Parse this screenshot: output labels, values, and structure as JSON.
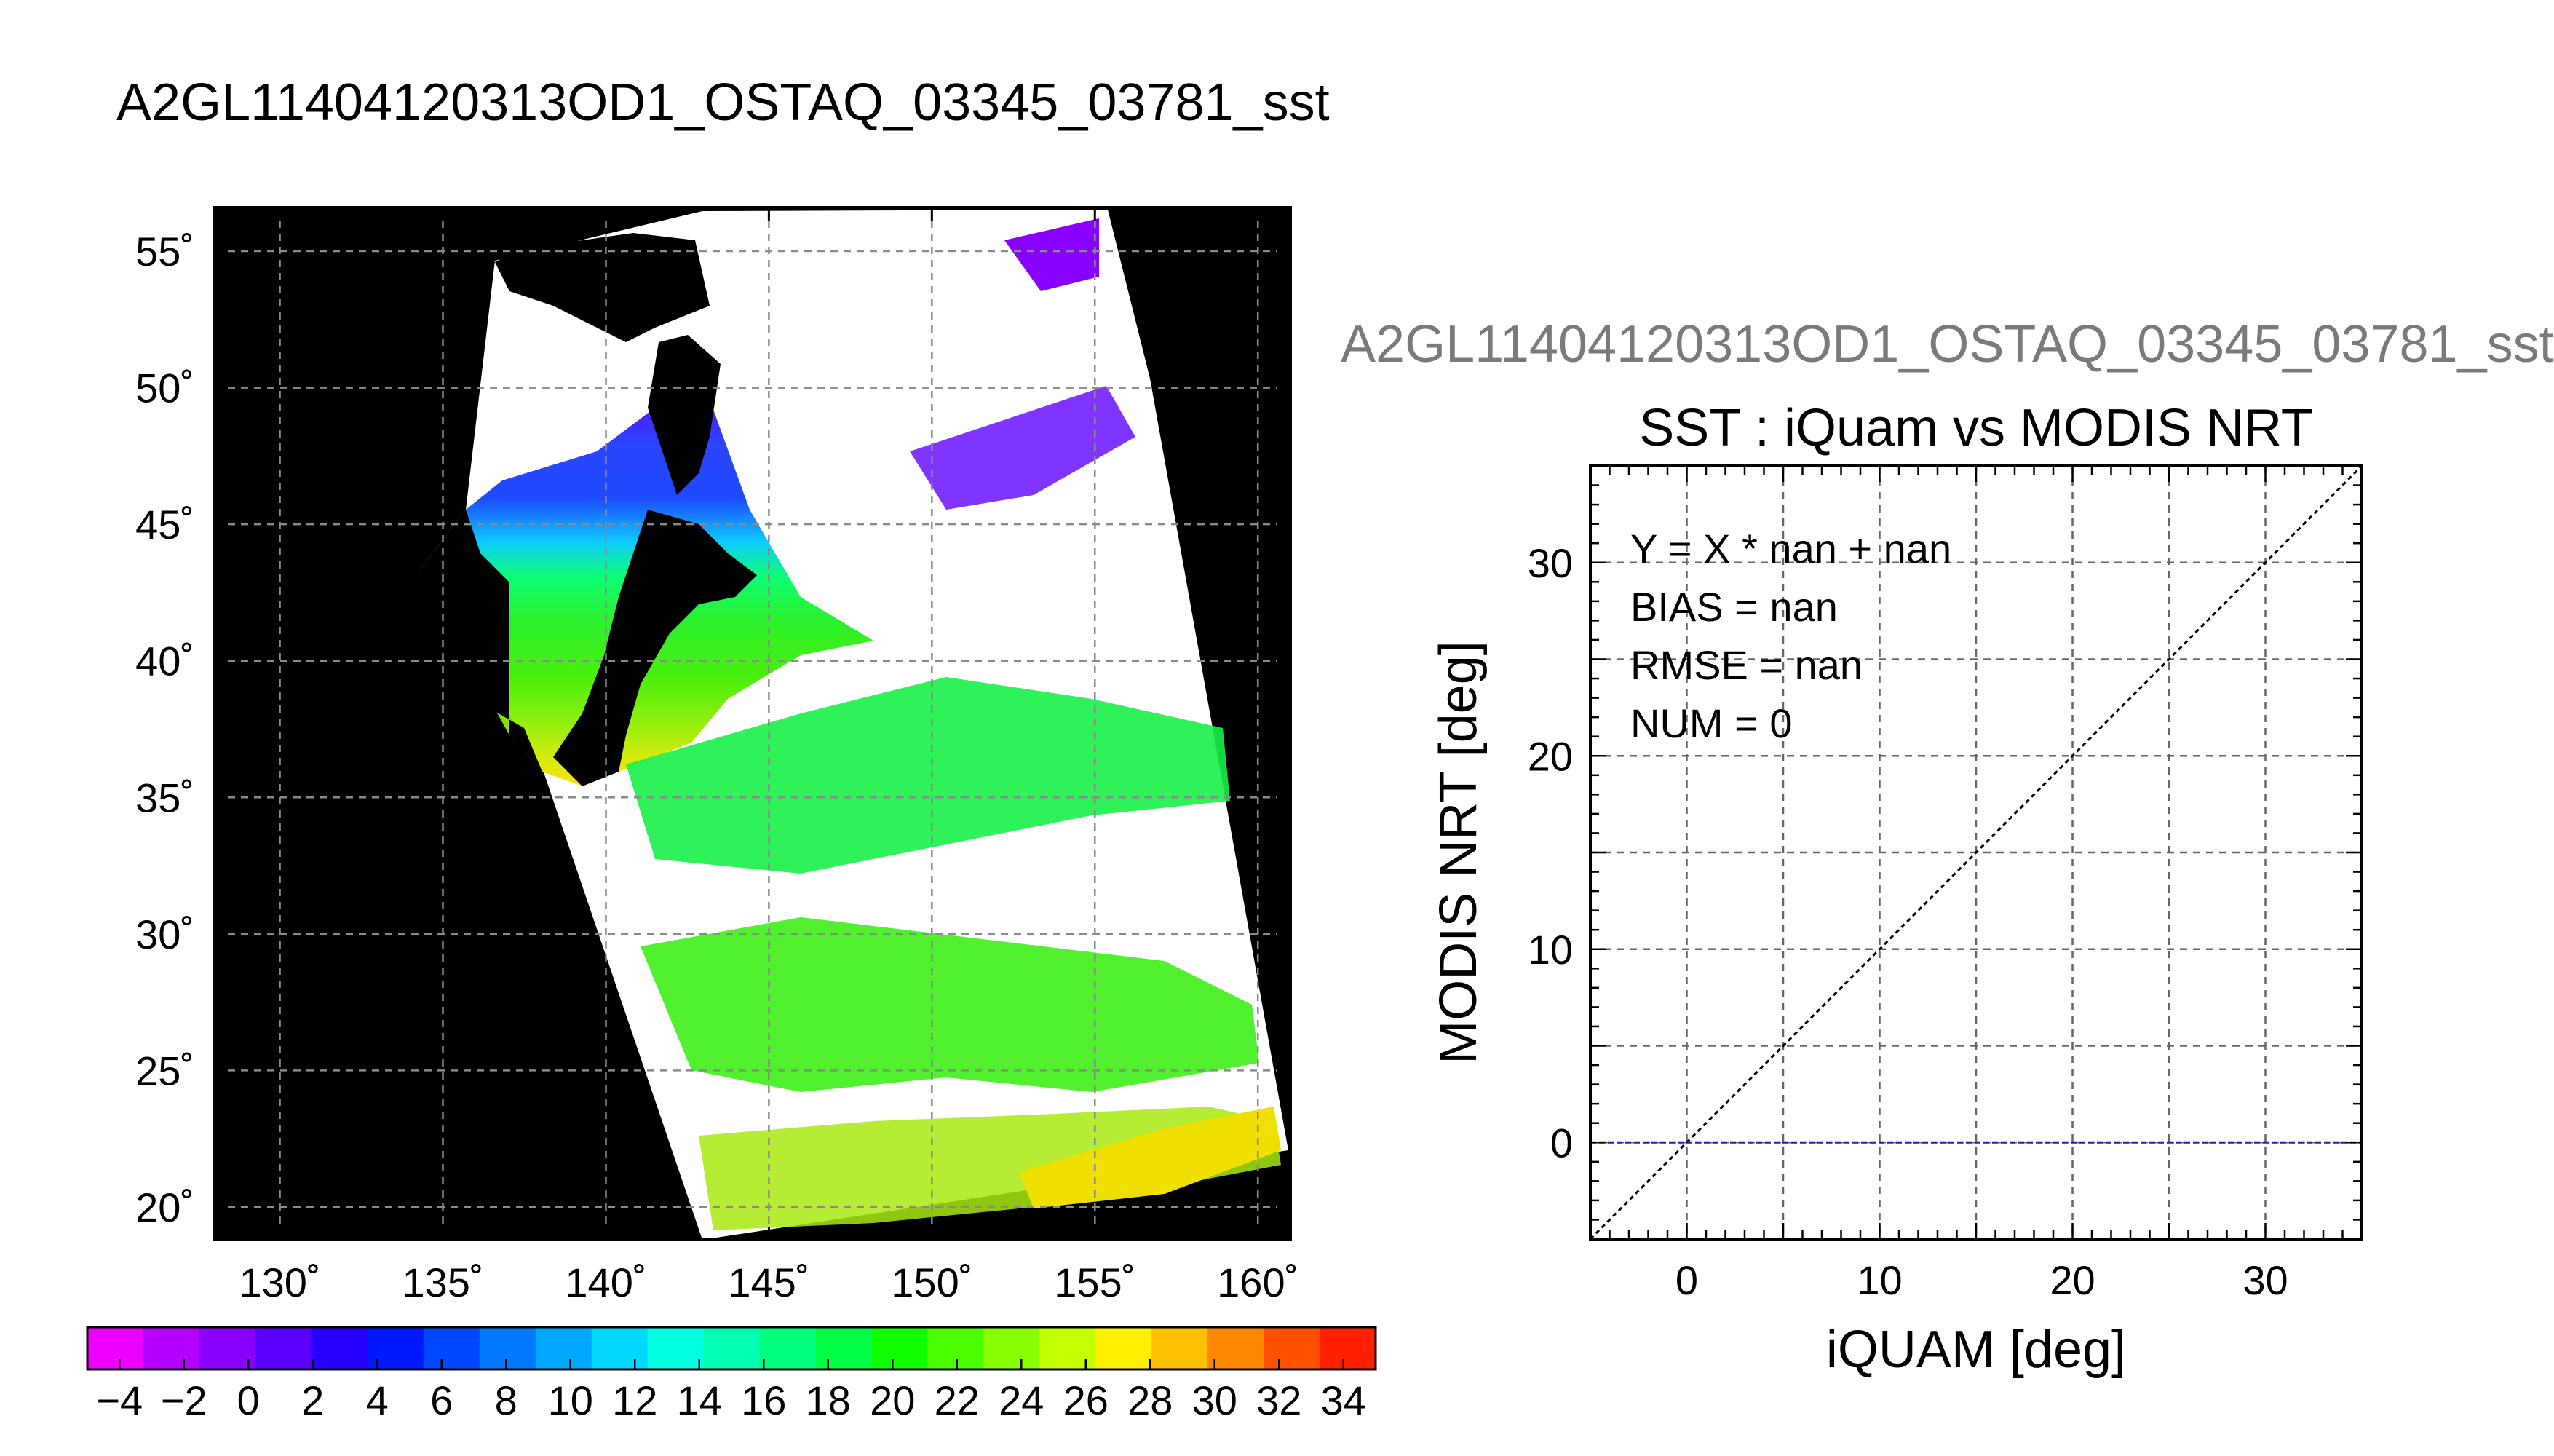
{
  "header": {
    "title": "A2GL11404120313OD1_OSTAQ_03345_03781_sst"
  },
  "map": {
    "lon_ticks": [
      130,
      135,
      140,
      145,
      150,
      155,
      160
    ],
    "lat_ticks": [
      20,
      25,
      30,
      35,
      40,
      45,
      50,
      55
    ],
    "lon_labels": [
      "130˚",
      "135˚",
      "140˚",
      "145˚",
      "150˚",
      "155˚",
      "160˚"
    ],
    "lat_labels": [
      "20˚",
      "25˚",
      "30˚",
      "35˚",
      "40˚",
      "45˚",
      "50˚",
      "55˚"
    ],
    "lon_range": [
      128,
      161
    ],
    "lat_range": [
      18.8,
      56.6
    ],
    "colors": {
      "background": "#000000",
      "cloud": "#ffffff",
      "grid": "#8a8a8a"
    }
  },
  "colorbar": {
    "tick_labels": [
      "−4",
      "−2",
      "0",
      "2",
      "4",
      "6",
      "8",
      "10",
      "12",
      "14",
      "16",
      "18",
      "20",
      "22",
      "24",
      "26",
      "28",
      "30",
      "32",
      "34"
    ],
    "vmin": -5,
    "vmax": 35,
    "step": 2,
    "colors": [
      "#ee00ff",
      "#b400ff",
      "#8a00ff",
      "#5a00ff",
      "#2800ff",
      "#0018ff",
      "#0048ff",
      "#0078ff",
      "#00a8ff",
      "#00d8ff",
      "#00ffe0",
      "#00ffb0",
      "#00ff7c",
      "#00ff44",
      "#10ff00",
      "#4cff00",
      "#88ff00",
      "#c4ff00",
      "#fff000",
      "#ffc000",
      "#ff8800",
      "#ff5000",
      "#ff2000"
    ]
  },
  "scatter": {
    "subtitle": "A2GL11404120313OD1_OSTAQ_03345_03781_sst",
    "title": "SST : iQuam vs MODIS NRT",
    "stats": [
      "Y = X * nan + nan",
      "BIAS = nan",
      "RMSE = nan",
      "NUM = 0"
    ],
    "colors": {
      "identity_line": "#000000",
      "zero_line": "#1c1cc8"
    }
  },
  "chart_data": {
    "type": "scatter",
    "title": "SST : iQuam vs MODIS NRT",
    "xlabel": "iQUAM [deg]",
    "ylabel": "MODIS NRT [deg]",
    "xlim": [
      -5,
      35
    ],
    "ylim": [
      -5,
      35
    ],
    "xticks": [
      0,
      10,
      20,
      30
    ],
    "yticks": [
      0,
      10,
      20,
      30
    ],
    "grid": true,
    "series": [],
    "lines": [
      {
        "kind": "identity",
        "x": [
          -5,
          35
        ],
        "y": [
          -5,
          35
        ]
      },
      {
        "kind": "zero",
        "x": [
          -5,
          35
        ],
        "y": [
          0,
          0
        ]
      }
    ]
  }
}
